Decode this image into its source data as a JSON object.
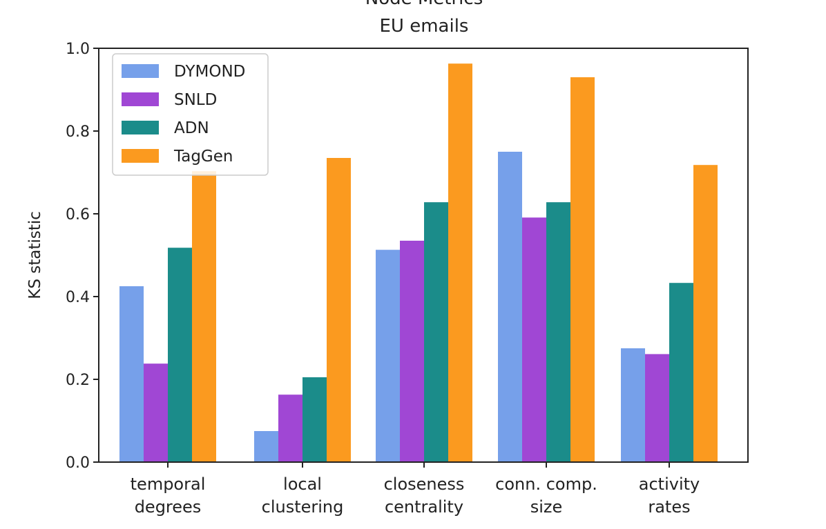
{
  "chart_data": {
    "type": "bar",
    "title": "Node Metrics",
    "subtitle": "EU emails",
    "xlabel": "",
    "ylabel": "KS statistic",
    "ylim": [
      0,
      1.0
    ],
    "yticks": [
      "0.0",
      "0.2",
      "0.4",
      "0.6",
      "0.8",
      "1.0"
    ],
    "categories": [
      [
        "temporal",
        "degrees"
      ],
      [
        "local",
        "clustering"
      ],
      [
        "closeness",
        "centrality"
      ],
      [
        "conn. comp.",
        "size"
      ],
      [
        "activity",
        "rates"
      ]
    ],
    "series": [
      {
        "name": "DYMOND",
        "color": "#76a0ea",
        "values": [
          0.425,
          0.075,
          0.513,
          0.75,
          0.275
        ]
      },
      {
        "name": "SNLD",
        "color": "#a047d4",
        "values": [
          0.238,
          0.163,
          0.535,
          0.591,
          0.261
        ]
      },
      {
        "name": "ADN",
        "color": "#1b8c8a",
        "values": [
          0.518,
          0.205,
          0.628,
          0.628,
          0.433
        ]
      },
      {
        "name": "TagGen",
        "color": "#fb9a1f",
        "values": [
          0.703,
          0.735,
          0.963,
          0.93,
          0.718
        ]
      }
    ],
    "legend": "top-left",
    "grid": false
  }
}
